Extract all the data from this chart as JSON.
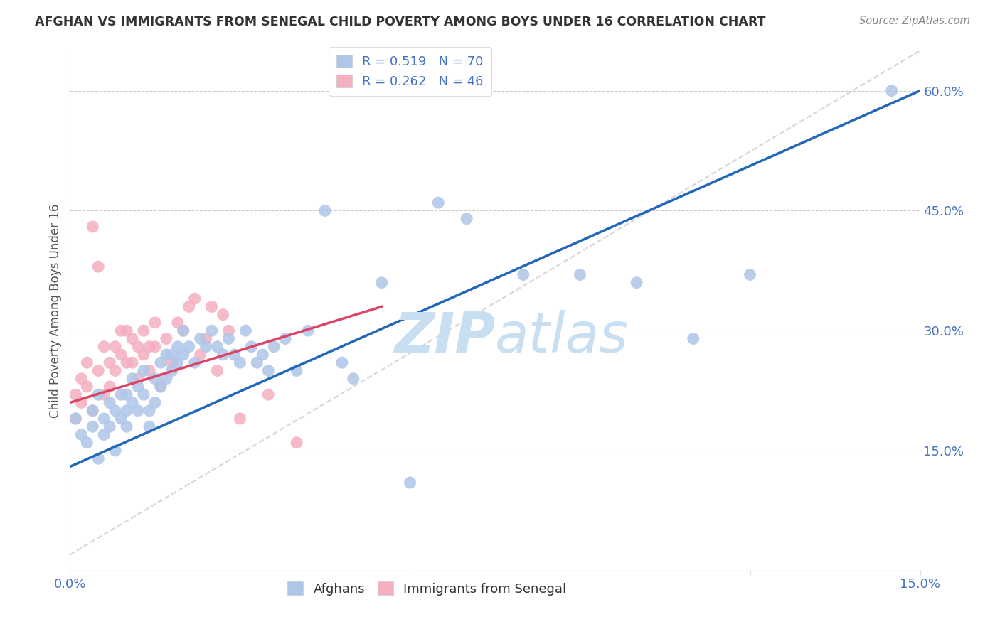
{
  "title": "AFGHAN VS IMMIGRANTS FROM SENEGAL CHILD POVERTY AMONG BOYS UNDER 16 CORRELATION CHART",
  "source": "Source: ZipAtlas.com",
  "ylabel": "Child Poverty Among Boys Under 16",
  "xlim": [
    0.0,
    0.15
  ],
  "ylim": [
    0.0,
    0.65
  ],
  "xticks": [
    0.0,
    0.03,
    0.06,
    0.09,
    0.12,
    0.15
  ],
  "yticks": [
    0.0,
    0.15,
    0.3,
    0.45,
    0.6
  ],
  "xtick_labels": [
    "0.0%",
    "",
    "",
    "",
    "",
    "15.0%"
  ],
  "ytick_labels": [
    "",
    "15.0%",
    "30.0%",
    "45.0%",
    "60.0%"
  ],
  "blue_R": 0.519,
  "blue_N": 70,
  "pink_R": 0.262,
  "pink_N": 46,
  "blue_color": "#aec6e8",
  "pink_color": "#f4afc0",
  "blue_line_color": "#2266bb",
  "pink_line_color": "#dd4466",
  "diag_line_color": "#cccccc",
  "legend_text_color": "#4472c4",
  "title_color": "#333333",
  "source_color": "#888888",
  "watermark_color": "#c8dff2",
  "blue_scatter_x": [
    0.001,
    0.002,
    0.003,
    0.004,
    0.004,
    0.005,
    0.005,
    0.006,
    0.006,
    0.007,
    0.007,
    0.008,
    0.008,
    0.009,
    0.009,
    0.01,
    0.01,
    0.01,
    0.011,
    0.011,
    0.012,
    0.012,
    0.013,
    0.013,
    0.014,
    0.014,
    0.015,
    0.015,
    0.016,
    0.016,
    0.017,
    0.017,
    0.018,
    0.018,
    0.019,
    0.019,
    0.02,
    0.02,
    0.021,
    0.022,
    0.023,
    0.024,
    0.025,
    0.026,
    0.027,
    0.028,
    0.029,
    0.03,
    0.031,
    0.032,
    0.033,
    0.034,
    0.035,
    0.036,
    0.038,
    0.04,
    0.042,
    0.045,
    0.048,
    0.05,
    0.055,
    0.06,
    0.065,
    0.07,
    0.08,
    0.09,
    0.1,
    0.11,
    0.12,
    0.145
  ],
  "blue_scatter_y": [
    0.19,
    0.17,
    0.16,
    0.2,
    0.18,
    0.14,
    0.22,
    0.19,
    0.17,
    0.21,
    0.18,
    0.15,
    0.2,
    0.19,
    0.22,
    0.22,
    0.2,
    0.18,
    0.24,
    0.21,
    0.23,
    0.2,
    0.25,
    0.22,
    0.2,
    0.18,
    0.24,
    0.21,
    0.26,
    0.23,
    0.27,
    0.24,
    0.27,
    0.25,
    0.28,
    0.26,
    0.3,
    0.27,
    0.28,
    0.26,
    0.29,
    0.28,
    0.3,
    0.28,
    0.27,
    0.29,
    0.27,
    0.26,
    0.3,
    0.28,
    0.26,
    0.27,
    0.25,
    0.28,
    0.29,
    0.25,
    0.3,
    0.45,
    0.26,
    0.24,
    0.36,
    0.11,
    0.46,
    0.44,
    0.37,
    0.37,
    0.36,
    0.29,
    0.37,
    0.6
  ],
  "pink_scatter_x": [
    0.001,
    0.001,
    0.002,
    0.002,
    0.003,
    0.003,
    0.004,
    0.004,
    0.005,
    0.005,
    0.006,
    0.006,
    0.007,
    0.007,
    0.008,
    0.008,
    0.009,
    0.009,
    0.01,
    0.01,
    0.011,
    0.011,
    0.012,
    0.012,
    0.013,
    0.013,
    0.014,
    0.014,
    0.015,
    0.015,
    0.016,
    0.017,
    0.018,
    0.019,
    0.02,
    0.021,
    0.022,
    0.023,
    0.024,
    0.025,
    0.026,
    0.027,
    0.028,
    0.03,
    0.035,
    0.04
  ],
  "pink_scatter_y": [
    0.22,
    0.19,
    0.24,
    0.21,
    0.26,
    0.23,
    0.43,
    0.2,
    0.38,
    0.25,
    0.22,
    0.28,
    0.26,
    0.23,
    0.28,
    0.25,
    0.3,
    0.27,
    0.3,
    0.26,
    0.29,
    0.26,
    0.28,
    0.24,
    0.3,
    0.27,
    0.28,
    0.25,
    0.31,
    0.28,
    0.23,
    0.29,
    0.26,
    0.31,
    0.3,
    0.33,
    0.34,
    0.27,
    0.29,
    0.33,
    0.25,
    0.32,
    0.3,
    0.19,
    0.22,
    0.16
  ],
  "blue_line_x": [
    0.0,
    0.15
  ],
  "blue_line_y": [
    0.13,
    0.6
  ],
  "pink_line_x": [
    0.0,
    0.055
  ],
  "pink_line_y": [
    0.21,
    0.33
  ],
  "diag_line_x": [
    0.0,
    0.15
  ],
  "diag_line_y": [
    0.02,
    0.65
  ]
}
